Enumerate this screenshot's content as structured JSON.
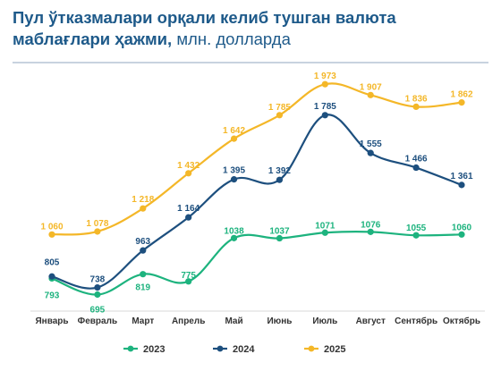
{
  "header": {
    "title_bold": "Пул ўтказмалари орқали келиб тушган валюта маблағлари ҳажми,",
    "title_unit": " млн. долларда"
  },
  "chart_data": {
    "type": "line",
    "title": "Пул ўтказмалари орқали келиб тушган валюта маблағлари ҳажми, млн. долларда",
    "xlabel": "",
    "ylabel": "",
    "ylim": [
      600,
      2050
    ],
    "grid": false,
    "legend_position": "bottom",
    "categories": [
      "Январь",
      "Февраль",
      "Март",
      "Апрель",
      "Май",
      "Июнь",
      "Июль",
      "Август",
      "Сентябрь",
      "Октябрь"
    ],
    "series": [
      {
        "name": "2023",
        "color": "#1db37e",
        "values": [
          793,
          695,
          819,
          775,
          1038,
          1037,
          1071,
          1076,
          1055,
          1060
        ],
        "labels": [
          "793",
          "695",
          "819",
          "775",
          "1038",
          "1037",
          "1071",
          "1076",
          "1055",
          "1060"
        ]
      },
      {
        "name": "2024",
        "color": "#1d4f7e",
        "values": [
          805,
          738,
          963,
          1164,
          1395,
          1392,
          1785,
          1555,
          1466,
          1361
        ],
        "labels": [
          "805",
          "738",
          "963",
          "1 164",
          "1 395",
          "1 392",
          "1 785",
          "1 555",
          "1 466",
          "1 361"
        ]
      },
      {
        "name": "2025",
        "color": "#f4b728",
        "values": [
          1060,
          1078,
          1218,
          1432,
          1642,
          1785,
          1973,
          1907,
          1836,
          1862
        ],
        "labels": [
          "1 060",
          "1 078",
          "1 218",
          "1 432",
          "1 642",
          "1 785",
          "1 973",
          "1 907",
          "1 836",
          "1 862"
        ]
      }
    ]
  }
}
